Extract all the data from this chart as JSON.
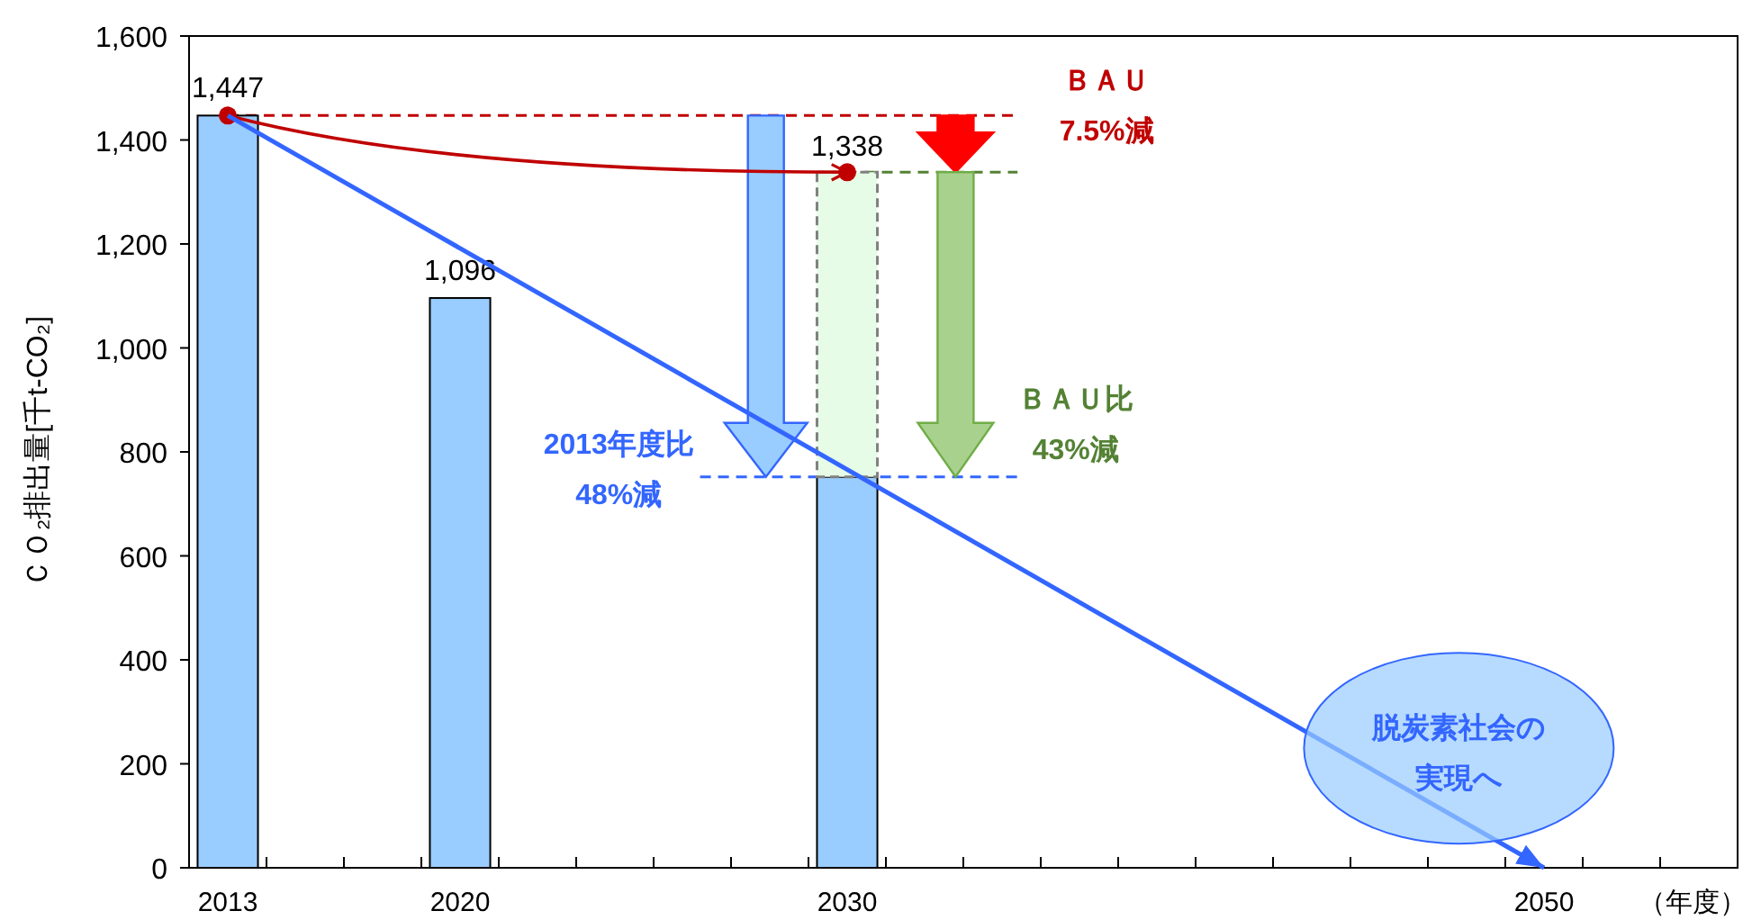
{
  "chart_data": {
    "type": "bar",
    "stacked": true,
    "categories": [
      "2013",
      null,
      null,
      "2020",
      null,
      null,
      null,
      null,
      "2030",
      null,
      null,
      null,
      null,
      null,
      null,
      null,
      null,
      "2050",
      null,
      null
    ],
    "series": [
      {
        "color": "#99ccff",
        "values": [
          1447,
          null,
          null,
          1096,
          null,
          null,
          null,
          null,
          752,
          null,
          null,
          null,
          null,
          null,
          null,
          null,
          null,
          null,
          null,
          null
        ],
        "value_labels": [
          "1,447",
          null,
          null,
          "1,096",
          null,
          null,
          null,
          null,
          null,
          null,
          null,
          null,
          null,
          null,
          null,
          null,
          null,
          null,
          null,
          null
        ]
      },
      {
        "color": "#e6fce6",
        "values": [
          null,
          null,
          null,
          null,
          null,
          null,
          null,
          null,
          586,
          null,
          null,
          null,
          null,
          null,
          null,
          null,
          null,
          null,
          null,
          null
        ]
      },
      {
        "type": "line",
        "color": "#c00000",
        "marker": "circle",
        "values": [
          1447,
          null,
          null,
          null,
          null,
          null,
          null,
          null,
          1338,
          null,
          null,
          null,
          null,
          null,
          null,
          null,
          null,
          null,
          null,
          null
        ],
        "value_labels": [
          null,
          null,
          null,
          null,
          null,
          null,
          null,
          null,
          "1,338",
          null,
          null,
          null,
          null,
          null,
          null,
          null,
          null,
          null,
          null,
          null
        ]
      },
      {
        "type": "line",
        "color": "#3366ff",
        "marker": "none",
        "values": [
          1447,
          null,
          null,
          null,
          null,
          null,
          null,
          null,
          null,
          null,
          null,
          null,
          null,
          null,
          null,
          null,
          null,
          0,
          null,
          null
        ]
      }
    ],
    "ylabel": "ＣＯ₂排出量[千t-CO₂]",
    "xlabel": "（年度）",
    "ylim": [
      0,
      1600
    ],
    "yticks": [
      0,
      200,
      400,
      600,
      800,
      {
        "value": 1000,
        "label": "1,000"
      },
      {
        "value": 1200,
        "label": "1,200"
      },
      {
        "value": 1400,
        "label": "1,400"
      },
      {
        "value": 1600,
        "label": "1,600"
      }
    ],
    "ref_lines": [
      {
        "axis": "y",
        "value": 1447,
        "label": "ＢＡＵ\n7.5%減",
        "color": "#c00000",
        "line_style": "dashed"
      },
      {
        "axis": "y",
        "value": 1338,
        "label": "ＢＡＵ比\n43%減",
        "color": "#548235",
        "line_style": "dashed"
      },
      {
        "axis": "y",
        "value": 752,
        "label": "2013年度比\n48%減",
        "color": "#3366ff",
        "line_style": "dashed"
      }
    ],
    "annotations": [
      "脱炭素社会の実現へ"
    ]
  }
}
